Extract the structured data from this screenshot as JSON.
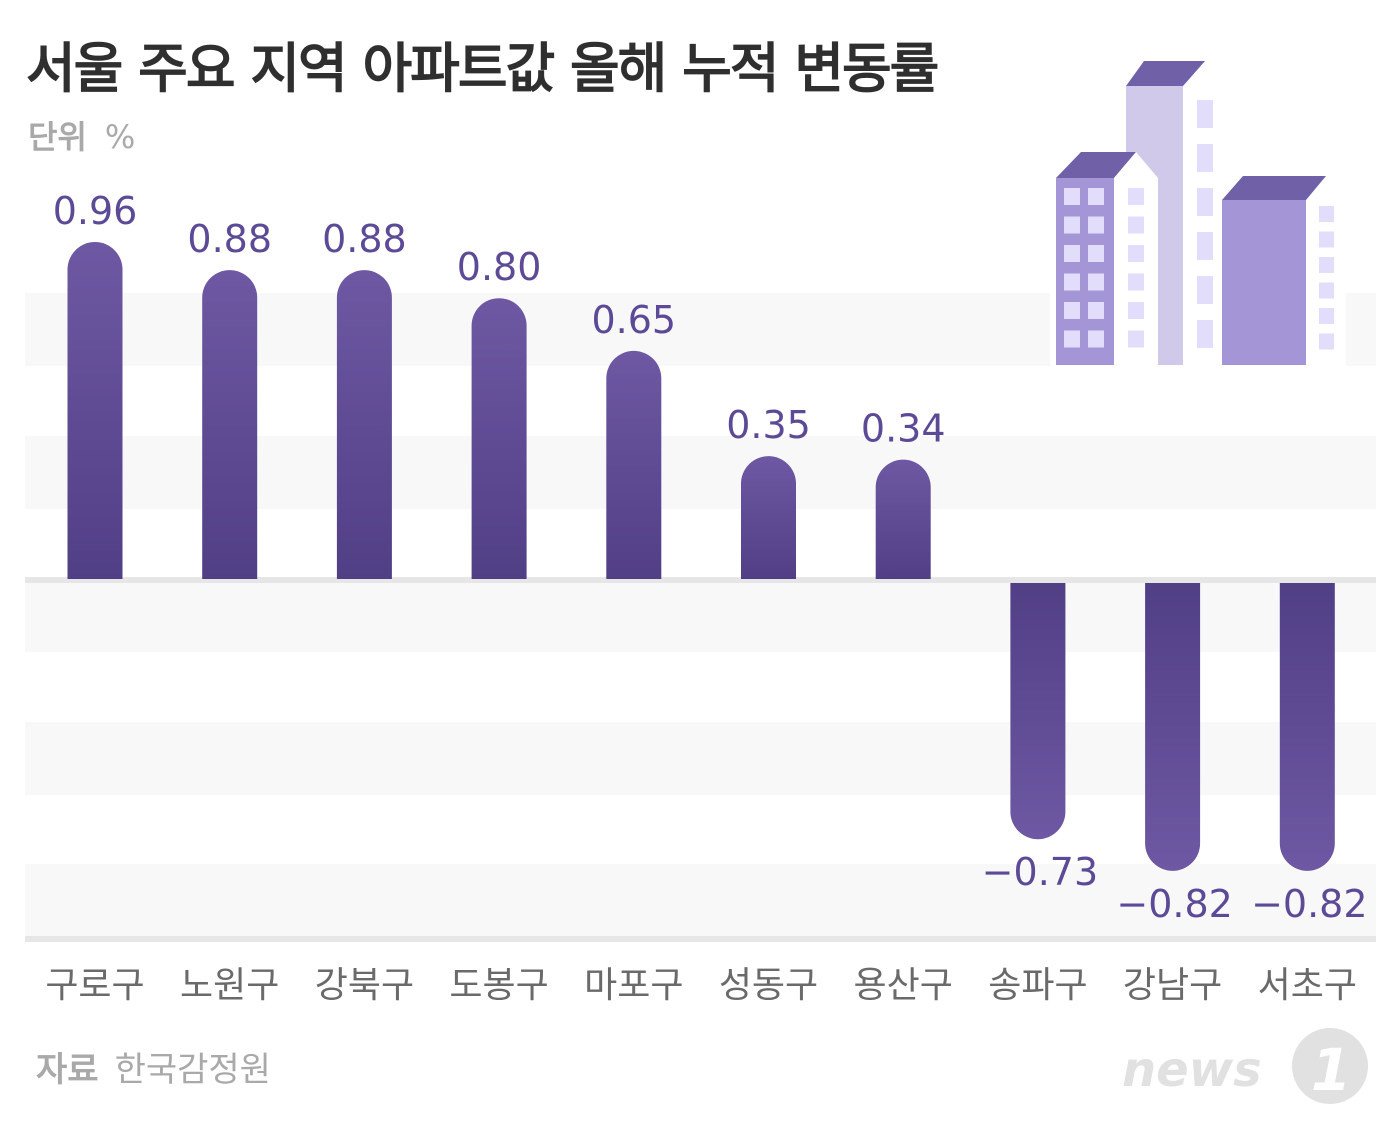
{
  "title": "서울 주요 지역 아파트값 올해 누적 변동률",
  "unit": {
    "label": "단위",
    "value": "%"
  },
  "source": {
    "label": "자료",
    "value": "한국감정원"
  },
  "logo": "news1",
  "colors": {
    "bar_top": "#6e58a3",
    "bar_bottom": "#513f86",
    "label": "#5d4a96",
    "band": "#f8f8f8",
    "axis": "#e6e6e6"
  },
  "chart_data": {
    "type": "bar",
    "title": "서울 주요 지역 아파트값 올해 누적 변동률",
    "ylabel": "%",
    "categories": [
      "구로구",
      "노원구",
      "강북구",
      "도봉구",
      "마포구",
      "성동구",
      "용산구",
      "송파구",
      "강남구",
      "서초구"
    ],
    "values": [
      0.96,
      0.88,
      0.88,
      0.8,
      0.65,
      0.35,
      0.34,
      -0.73,
      -0.82,
      -0.82
    ],
    "value_labels": [
      "0.96",
      "0.88",
      "0.88",
      "0.80",
      "0.65",
      "0.35",
      "0.34",
      "−0.73",
      "−0.82",
      "−0.82"
    ],
    "grid": true,
    "legend": "none"
  }
}
